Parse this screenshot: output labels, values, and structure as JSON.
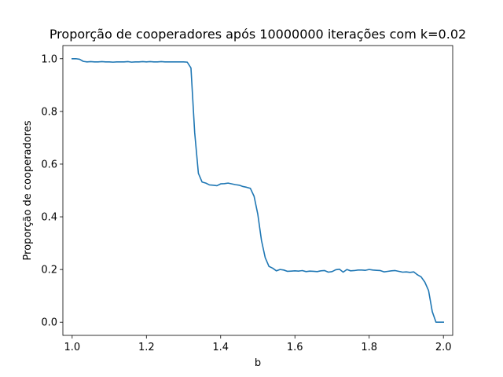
{
  "chart_data": {
    "type": "line",
    "title": "Proporção de cooperadores após 10000000 iterações com k=0.02",
    "xlabel": "b",
    "ylabel": "Proporção de cooperadores",
    "xlim": [
      0.975,
      2.025
    ],
    "ylim": [
      -0.05,
      1.05
    ],
    "xticks": [
      1.0,
      1.2,
      1.4,
      1.6,
      1.8,
      2.0
    ],
    "xtick_labels": [
      "1.0",
      "1.2",
      "1.4",
      "1.6",
      "1.8",
      "2.0"
    ],
    "yticks": [
      0.0,
      0.2,
      0.4,
      0.6,
      0.8,
      1.0
    ],
    "ytick_labels": [
      "0.0",
      "0.2",
      "0.4",
      "0.6",
      "0.8",
      "1.0"
    ],
    "grid": false,
    "legend": false,
    "line_color": "#1f77b4",
    "series": [
      {
        "x": [
          1.0,
          1.01,
          1.02,
          1.03,
          1.04,
          1.05,
          1.06,
          1.07,
          1.08,
          1.09,
          1.1,
          1.11,
          1.12,
          1.13,
          1.14,
          1.15,
          1.16,
          1.17,
          1.18,
          1.19,
          1.2,
          1.21,
          1.22,
          1.23,
          1.24,
          1.25,
          1.26,
          1.27,
          1.28,
          1.29,
          1.3,
          1.31,
          1.32,
          1.33,
          1.34,
          1.35,
          1.36,
          1.37,
          1.38,
          1.39,
          1.4,
          1.41,
          1.42,
          1.43,
          1.44,
          1.45,
          1.46,
          1.47,
          1.48,
          1.49,
          1.5,
          1.51,
          1.52,
          1.53,
          1.54,
          1.55,
          1.56,
          1.57,
          1.58,
          1.59,
          1.6,
          1.61,
          1.62,
          1.63,
          1.64,
          1.65,
          1.66,
          1.67,
          1.68,
          1.69,
          1.7,
          1.71,
          1.72,
          1.73,
          1.74,
          1.75,
          1.76,
          1.77,
          1.78,
          1.79,
          1.8,
          1.81,
          1.82,
          1.83,
          1.84,
          1.85,
          1.86,
          1.87,
          1.88,
          1.89,
          1.9,
          1.91,
          1.92,
          1.93,
          1.94,
          1.95,
          1.96,
          1.97,
          1.98,
          1.99,
          2.0
        ],
        "y": [
          1.0,
          1.0,
          0.998,
          0.99,
          0.988,
          0.989,
          0.988,
          0.988,
          0.989,
          0.988,
          0.988,
          0.987,
          0.988,
          0.988,
          0.988,
          0.989,
          0.987,
          0.988,
          0.988,
          0.989,
          0.988,
          0.989,
          0.988,
          0.988,
          0.989,
          0.988,
          0.988,
          0.988,
          0.988,
          0.988,
          0.988,
          0.987,
          0.965,
          0.72,
          0.565,
          0.532,
          0.528,
          0.521,
          0.52,
          0.518,
          0.525,
          0.526,
          0.528,
          0.525,
          0.522,
          0.52,
          0.515,
          0.512,
          0.508,
          0.478,
          0.41,
          0.31,
          0.245,
          0.212,
          0.205,
          0.195,
          0.2,
          0.198,
          0.193,
          0.194,
          0.195,
          0.194,
          0.196,
          0.192,
          0.194,
          0.193,
          0.192,
          0.195,
          0.196,
          0.19,
          0.192,
          0.199,
          0.201,
          0.19,
          0.2,
          0.195,
          0.196,
          0.198,
          0.198,
          0.197,
          0.2,
          0.198,
          0.197,
          0.196,
          0.191,
          0.193,
          0.195,
          0.196,
          0.193,
          0.19,
          0.191,
          0.189,
          0.191,
          0.18,
          0.172,
          0.152,
          0.12,
          0.04,
          0.0,
          0.0,
          0.0
        ]
      }
    ]
  }
}
